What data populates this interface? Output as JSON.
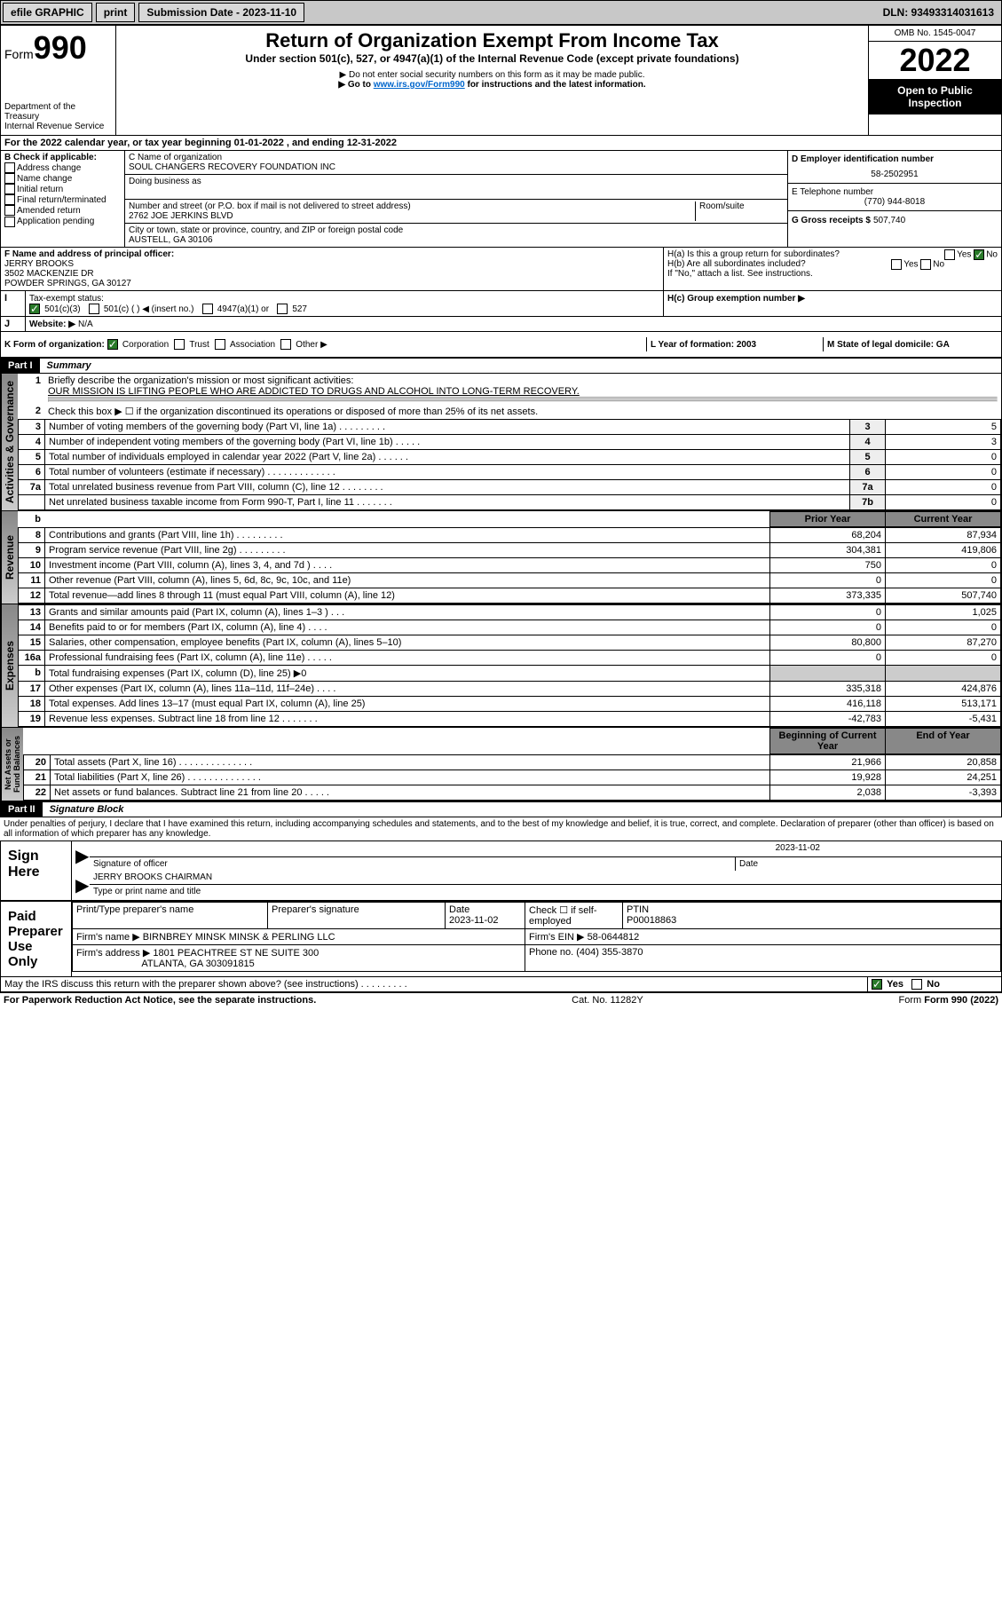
{
  "topbar": {
    "efile": "efile GRAPHIC",
    "print": "print",
    "submission_label": "Submission Date - 2023-11-10",
    "dln": "DLN: 93493314031613"
  },
  "header": {
    "form_prefix": "Form",
    "form_number": "990",
    "title": "Return of Organization Exempt From Income Tax",
    "subtitle": "Under section 501(c), 527, or 4947(a)(1) of the Internal Revenue Code (except private foundations)",
    "note1": "▶ Do not enter social security numbers on this form as it may be made public.",
    "note2_pre": "▶ Go to ",
    "note2_link": "www.irs.gov/Form990",
    "note2_post": " for instructions and the latest information.",
    "dept": "Department of the Treasury",
    "irs": "Internal Revenue Service",
    "omb": "OMB No. 1545-0047",
    "year": "2022",
    "inspect": "Open to Public Inspection"
  },
  "sectionA": {
    "line": "For the 2022 calendar year, or tax year beginning 01-01-2022    , and ending 12-31-2022"
  },
  "sectionB": {
    "label": "B Check if applicable:",
    "items": [
      "Address change",
      "Name change",
      "Initial return",
      "Final return/terminated",
      "Amended return",
      "Application pending"
    ]
  },
  "sectionC": {
    "name_label": "C Name of organization",
    "name": "SOUL CHANGERS RECOVERY FOUNDATION INC",
    "dba_label": "Doing business as",
    "addr_label": "Number and street (or P.O. box if mail is not delivered to street address)",
    "room_label": "Room/suite",
    "addr": "2762 JOE JERKINS BLVD",
    "city_label": "City or town, state or province, country, and ZIP or foreign postal code",
    "city": "AUSTELL, GA  30106"
  },
  "sectionD": {
    "label": "D Employer identification number",
    "value": "58-2502951"
  },
  "sectionE": {
    "label": "E Telephone number",
    "value": "(770) 944-8018"
  },
  "sectionG": {
    "label": "G Gross receipts $",
    "value": "507,740"
  },
  "sectionF": {
    "label": "F Name and address of principal officer:",
    "name": "JERRY BROOKS",
    "addr1": "3502 MACKENZIE DR",
    "addr2": "POWDER SPRINGS, GA  30127"
  },
  "sectionH": {
    "a": "H(a)  Is this a group return for subordinates?",
    "b": "H(b)  Are all subordinates included?",
    "note": "If \"No,\" attach a list. See instructions.",
    "c": "H(c)  Group exemption number ▶",
    "yes": "Yes",
    "no": "No"
  },
  "sectionI": {
    "label": "Tax-exempt status:",
    "opts": [
      "501(c)(3)",
      "501(c) (  ) ◀ (insert no.)",
      "4947(a)(1) or",
      "527"
    ]
  },
  "sectionJ": {
    "label": "Website: ▶",
    "value": "N/A"
  },
  "sectionK": {
    "label": "K Form of organization:",
    "opts": [
      "Corporation",
      "Trust",
      "Association",
      "Other ▶"
    ]
  },
  "sectionL": {
    "label": "L Year of formation: 2003"
  },
  "sectionM": {
    "label": "M State of legal domicile: GA"
  },
  "partI": {
    "label": "Part I",
    "title": "Summary",
    "line1_label": "Briefly describe the organization's mission or most significant activities:",
    "line1_value": "OUR MISSION IS LIFTING PEOPLE WHO ARE ADDICTED TO DRUGS AND ALCOHOL INTO LONG-TERM RECOVERY.",
    "line2": "Check this box ▶ ☐  if the organization discontinued its operations or disposed of more than 25% of its net assets.",
    "governance_rows": [
      {
        "n": "3",
        "d": "Number of voting members of the governing body (Part VI, line 1a)   .    .    .    .    .    .    .    .    .",
        "k": "3",
        "v": "5"
      },
      {
        "n": "4",
        "d": "Number of independent voting members of the governing body (Part VI, line 1b)   .    .    .    .    .",
        "k": "4",
        "v": "3"
      },
      {
        "n": "5",
        "d": "Total number of individuals employed in calendar year 2022 (Part V, line 2a)   .    .    .    .    .    .",
        "k": "5",
        "v": "0"
      },
      {
        "n": "6",
        "d": "Total number of volunteers (estimate if necessary)   .    .    .    .    .    .    .    .    .    .    .    .    .",
        "k": "6",
        "v": "0"
      },
      {
        "n": "7a",
        "d": "Total unrelated business revenue from Part VIII, column (C), line 12   .    .    .    .    .    .    .    .",
        "k": "7a",
        "v": "0"
      },
      {
        "n": "",
        "d": "Net unrelated business taxable income from Form 990-T, Part I, line 11   .    .    .    .    .    .    .",
        "k": "7b",
        "v": "0"
      }
    ],
    "prior_hdr": "Prior Year",
    "current_hdr": "Current Year",
    "revenue_rows": [
      {
        "n": "8",
        "d": "Contributions and grants (Part VIII, line 1h)   .    .    .    .    .    .    .    .    .",
        "p": "68,204",
        "c": "87,934"
      },
      {
        "n": "9",
        "d": "Program service revenue (Part VIII, line 2g)   .    .    .    .    .    .    .    .    .",
        "p": "304,381",
        "c": "419,806"
      },
      {
        "n": "10",
        "d": "Investment income (Part VIII, column (A), lines 3, 4, and 7d )   .    .    .    .",
        "p": "750",
        "c": "0"
      },
      {
        "n": "11",
        "d": "Other revenue (Part VIII, column (A), lines 5, 6d, 8c, 9c, 10c, and 11e)",
        "p": "0",
        "c": "0"
      },
      {
        "n": "12",
        "d": "Total revenue—add lines 8 through 11 (must equal Part VIII, column (A), line 12)",
        "p": "373,335",
        "c": "507,740"
      }
    ],
    "expense_rows": [
      {
        "n": "13",
        "d": "Grants and similar amounts paid (Part IX, column (A), lines 1–3 )   .    .    .",
        "p": "0",
        "c": "1,025"
      },
      {
        "n": "14",
        "d": "Benefits paid to or for members (Part IX, column (A), line 4)   .    .    .    .",
        "p": "0",
        "c": "0"
      },
      {
        "n": "15",
        "d": "Salaries, other compensation, employee benefits (Part IX, column (A), lines 5–10)",
        "p": "80,800",
        "c": "87,270"
      },
      {
        "n": "16a",
        "d": "Professional fundraising fees (Part IX, column (A), line 11e)   .    .    .    .    .",
        "p": "0",
        "c": "0"
      },
      {
        "n": "b",
        "d": "Total fundraising expenses (Part IX, column (D), line 25) ▶0",
        "p": "",
        "c": ""
      },
      {
        "n": "17",
        "d": "Other expenses (Part IX, column (A), lines 11a–11d, 11f–24e)   .    .    .    .",
        "p": "335,318",
        "c": "424,876"
      },
      {
        "n": "18",
        "d": "Total expenses. Add lines 13–17 (must equal Part IX, column (A), line 25)",
        "p": "416,118",
        "c": "513,171"
      },
      {
        "n": "19",
        "d": "Revenue less expenses. Subtract line 18 from line 12   .    .    .    .    .    .    .",
        "p": "-42,783",
        "c": "-5,431"
      }
    ],
    "begin_hdr": "Beginning of Current Year",
    "end_hdr": "End of Year",
    "assets_rows": [
      {
        "n": "20",
        "d": "Total assets (Part X, line 16)   .    .    .    .    .    .    .    .    .    .    .    .    .    .",
        "p": "21,966",
        "c": "20,858"
      },
      {
        "n": "21",
        "d": "Total liabilities (Part X, line 26)   .    .    .    .    .    .    .    .    .    .    .    .    .    .",
        "p": "19,928",
        "c": "24,251"
      },
      {
        "n": "22",
        "d": "Net assets or fund balances. Subtract line 21 from line 20   .    .    .    .    .",
        "p": "2,038",
        "c": "-3,393"
      }
    ]
  },
  "partII": {
    "label": "Part II",
    "title": "Signature Block",
    "decl": "Under penalties of perjury, I declare that I have examined this return, including accompanying schedules and statements, and to the best of my knowledge and belief, it is true, correct, and complete. Declaration of preparer (other than officer) is based on all information of which preparer has any knowledge."
  },
  "sign": {
    "label": "Sign Here",
    "sig_label": "Signature of officer",
    "date_label": "Date",
    "date": "2023-11-02",
    "name": "JERRY BROOKS CHAIRMAN",
    "name_label": "Type or print name and title"
  },
  "preparer": {
    "label": "Paid Preparer Use Only",
    "col1": "Print/Type preparer's name",
    "col2": "Preparer's signature",
    "col3": "Date",
    "date": "2023-11-02",
    "col4": "Check ☐ if self-employed",
    "col5": "PTIN",
    "ptin": "P00018863",
    "firm_name_label": "Firm's name     ▶",
    "firm_name": "BIRNBREY MINSK MINSK & PERLING LLC",
    "firm_ein_label": "Firm's EIN ▶",
    "firm_ein": "58-0644812",
    "firm_addr_label": "Firm's address ▶",
    "firm_addr1": "1801 PEACHTREE ST NE SUITE 300",
    "firm_addr2": "ATLANTA, GA  303091815",
    "phone_label": "Phone no.",
    "phone": "(404) 355-3870"
  },
  "footer": {
    "discuss": "May the IRS discuss this return with the preparer shown above? (see instructions)    .    .    .    .    .    .    .    .    .",
    "yes": "Yes",
    "no": "No",
    "paperwork": "For Paperwork Reduction Act Notice, see the separate instructions.",
    "cat": "Cat. No. 11282Y",
    "form": "Form 990 (2022)"
  },
  "colors": {
    "link": "#0066cc",
    "checked": "#2a7a2a",
    "shade": "#eeeeee"
  }
}
